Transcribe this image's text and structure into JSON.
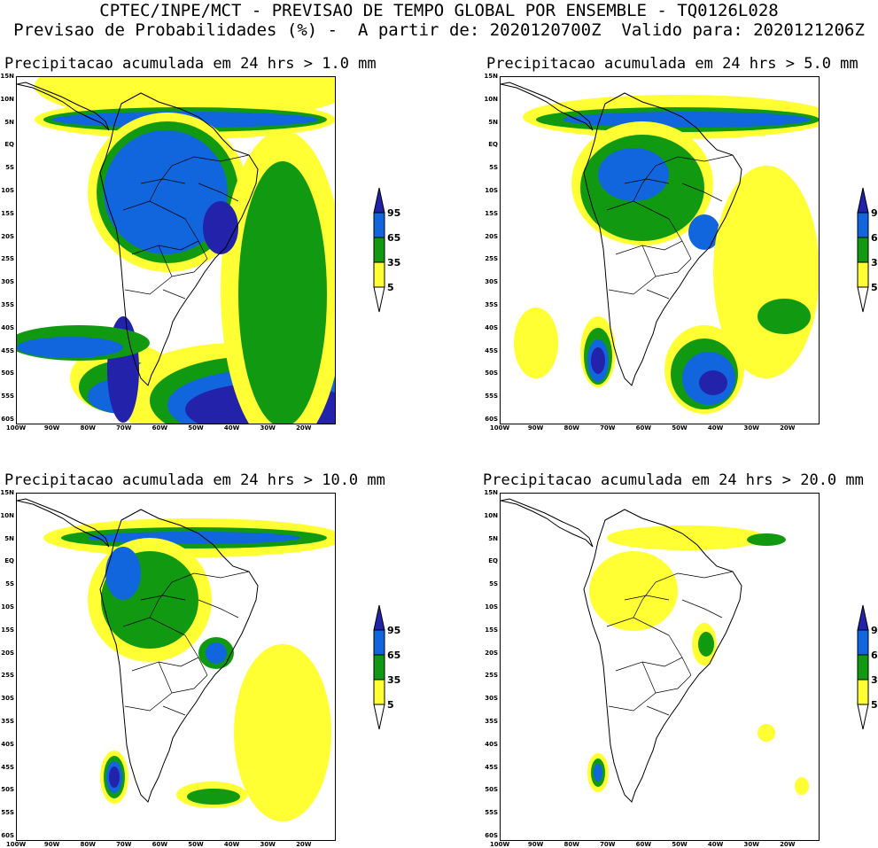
{
  "header": {
    "line1": "CPTEC/INPE/MCT - PREVISAO DE TEMPO GLOBAL POR ENSEMBLE - TQ0126L028",
    "line2": "Previsao de Probabilidades (%) -  A partir de: 2020120700Z  Valido para: 2020121206Z"
  },
  "panels": [
    {
      "title": "Precipitacao acumulada em 24 hrs > 1.0 mm",
      "threshold_mm": 1.0
    },
    {
      "title": "Precipitacao acumulada em 24 hrs > 5.0 mm",
      "threshold_mm": 5.0
    },
    {
      "title": "Precipitacao acumulada em 24 hrs > 10.0 mm",
      "threshold_mm": 10.0
    },
    {
      "title": "Precipitacao acumulada em 24 hrs > 20.0 mm",
      "threshold_mm": 20.0
    }
  ],
  "lat_labels": [
    "15N",
    "10N",
    "5N",
    "EQ",
    "5S",
    "10S",
    "15S",
    "20S",
    "25S",
    "30S",
    "35S",
    "40S",
    "45S",
    "50S",
    "55S",
    "60S"
  ],
  "lon_labels": [
    "100W",
    "90W",
    "80W",
    "70W",
    "60W",
    "50W",
    "40W",
    "30W",
    "20W"
  ],
  "colorbar": {
    "levels": [
      "5",
      "35",
      "65",
      "95"
    ],
    "colors": {
      "p5": "#ffff33",
      "p35": "#119911",
      "p65": "#1166dd",
      "p95": "#2222aa"
    }
  },
  "map_colors": {
    "land_outline": "#000000",
    "background": "#ffffff"
  }
}
